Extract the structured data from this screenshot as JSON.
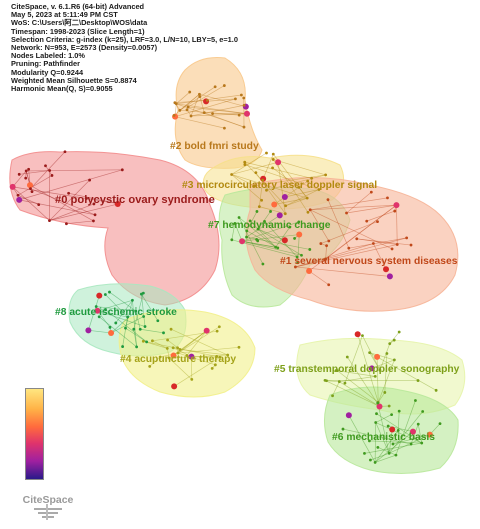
{
  "info_lines": [
    "CiteSpace, v. 6.1.R6 (64-bit) Advanced",
    "May 5, 2023 at 5:11:49 PM CST",
    "WoS: C:\\Users\\阿二\\Desktop\\WOS\\data",
    "Timespan: 1998-2023 (Slice Length=1)",
    "Selection Criteria: g-index (k=25), LRF=3.0, L/N=10, LBY=5, e=1.0",
    "Network: N=953, E=2573 (Density=0.0057)",
    "Nodes Labeled: 1.0%",
    "Pruning: Pathfinder",
    "Modularity Q=0.9244",
    "Weighted Mean Silhouette S=0.8874",
    "Harmonic Mean(Q, S)=0.9055"
  ],
  "clusters": [
    {
      "id": "c0",
      "label": "#0 polycystic ovary syndrome",
      "color": "#9b1b1b",
      "fill": "#f28b8b"
    },
    {
      "id": "c1",
      "label": "#1 several nervous system diseases",
      "color": "#c0481a",
      "fill": "#f6b497"
    },
    {
      "id": "c2",
      "label": "#2 bold fmri study",
      "color": "#b8781c",
      "fill": "#f8c88a"
    },
    {
      "id": "c3",
      "label": "#3 microcirculatory laser doppler signal",
      "color": "#b28a10",
      "fill": "#f6e08a"
    },
    {
      "id": "c4",
      "label": "#4 acupuncture therapy",
      "color": "#a5a31a",
      "fill": "#f2f08a"
    },
    {
      "id": "c5",
      "label": "#5 transtemporal doppler sonography",
      "color": "#7ea01a",
      "fill": "#e6f4a8"
    },
    {
      "id": "c6",
      "label": "#6 mechanistic basis",
      "color": "#3f9a1f",
      "fill": "#b8e89a"
    },
    {
      "id": "c7",
      "label": "#7 hemodynamic change",
      "color": "#3f9a1f",
      "fill": "#b8e89a"
    },
    {
      "id": "c8",
      "label": "#8 acute ischemic stroke",
      "color": "#1f9a3f",
      "fill": "#a8e8c0"
    }
  ],
  "logo": {
    "text": "CiteSpace"
  }
}
